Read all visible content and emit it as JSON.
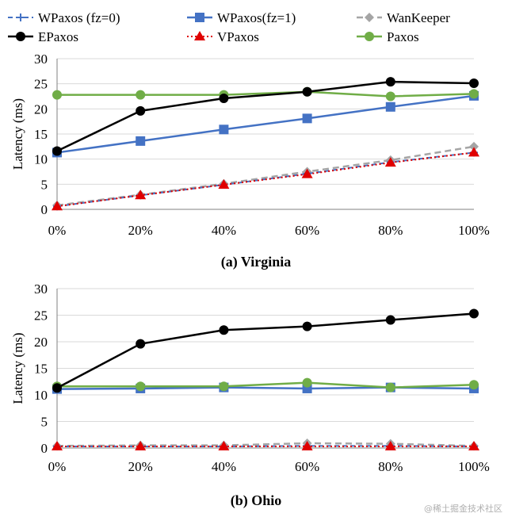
{
  "legend": [
    {
      "series_id": "wpaxos_fz0",
      "label": "WPaxos (fz=0)"
    },
    {
      "series_id": "wpaxos_fz1",
      "label": "WPaxos(fz=1)"
    },
    {
      "series_id": "wankeeper",
      "label": "WanKeeper"
    },
    {
      "series_id": "epaxos",
      "label": "EPaxos"
    },
    {
      "series_id": "vpaxos",
      "label": "VPaxos"
    },
    {
      "series_id": "paxos",
      "label": "Paxos"
    }
  ],
  "series_styles": {
    "wpaxos_fz0": {
      "color": "#4472C4",
      "dash": "6,4",
      "marker": "plus",
      "width": 2
    },
    "wpaxos_fz1": {
      "color": "#4472C4",
      "dash": "",
      "marker": "square",
      "width": 2.5
    },
    "wankeeper": {
      "color": "#A5A5A5",
      "dash": "8,5",
      "marker": "diamond",
      "width": 2.5
    },
    "epaxos": {
      "color": "#000000",
      "dash": "",
      "marker": "circle",
      "width": 2.5
    },
    "vpaxos": {
      "color": "#E00000",
      "dash": "2,3",
      "marker": "triangle",
      "width": 2
    },
    "paxos": {
      "color": "#70AD47",
      "dash": "",
      "marker": "circle",
      "width": 2.5
    }
  },
  "chart_data": [
    {
      "type": "line",
      "title": "(a) Virginia",
      "xlabel": "",
      "ylabel": "Latency (ms)",
      "categories": [
        "0%",
        "20%",
        "40%",
        "60%",
        "80%",
        "100%"
      ],
      "ylim": [
        0,
        30
      ],
      "yticks": [
        0,
        5,
        10,
        15,
        20,
        25,
        30
      ],
      "grid": true,
      "legend_position": "top",
      "series": [
        {
          "id": "wankeeper",
          "name": "WanKeeper",
          "values": [
            0.8,
            2.9,
            5.1,
            7.5,
            9.8,
            12.5
          ]
        },
        {
          "id": "wpaxos_fz0",
          "name": "WPaxos (fz=0)",
          "values": [
            0.6,
            2.8,
            4.9,
            7.1,
            9.4,
            11.3
          ]
        },
        {
          "id": "vpaxos",
          "name": "VPaxos",
          "values": [
            0.6,
            2.8,
            4.9,
            7.0,
            9.3,
            11.3
          ]
        },
        {
          "id": "wpaxos_fz1",
          "name": "WPaxos(fz=1)",
          "values": [
            11.3,
            13.6,
            15.9,
            18.1,
            20.4,
            22.6
          ]
        },
        {
          "id": "paxos",
          "name": "Paxos",
          "values": [
            22.8,
            22.8,
            22.8,
            23.4,
            22.5,
            23.0
          ]
        },
        {
          "id": "epaxos",
          "name": "EPaxos",
          "values": [
            11.6,
            19.6,
            22.1,
            23.4,
            25.4,
            25.1
          ]
        }
      ]
    },
    {
      "type": "line",
      "title": "(b) Ohio",
      "xlabel": "",
      "ylabel": "Latency (ms)",
      "categories": [
        "0%",
        "20%",
        "40%",
        "60%",
        "80%",
        "100%"
      ],
      "ylim": [
        0,
        30
      ],
      "yticks": [
        0,
        5,
        10,
        15,
        20,
        25,
        30
      ],
      "grid": true,
      "legend_position": "top",
      "series": [
        {
          "id": "wankeeper",
          "name": "WanKeeper",
          "values": [
            0.4,
            0.5,
            0.5,
            0.9,
            0.8,
            0.4
          ]
        },
        {
          "id": "wpaxos_fz0",
          "name": "WPaxos (fz=0)",
          "values": [
            0.3,
            0.3,
            0.3,
            0.4,
            0.4,
            0.3
          ]
        },
        {
          "id": "vpaxos",
          "name": "VPaxos",
          "values": [
            0.3,
            0.3,
            0.3,
            0.3,
            0.3,
            0.3
          ]
        },
        {
          "id": "wpaxos_fz1",
          "name": "WPaxos(fz=1)",
          "values": [
            11.1,
            11.2,
            11.4,
            11.2,
            11.4,
            11.2
          ]
        },
        {
          "id": "paxos",
          "name": "Paxos",
          "values": [
            11.6,
            11.6,
            11.6,
            12.3,
            11.4,
            11.9
          ]
        },
        {
          "id": "epaxos",
          "name": "EPaxos",
          "values": [
            11.3,
            19.6,
            22.2,
            22.9,
            24.1,
            25.3
          ]
        }
      ]
    }
  ],
  "watermark": "@稀土掘金技术社区"
}
